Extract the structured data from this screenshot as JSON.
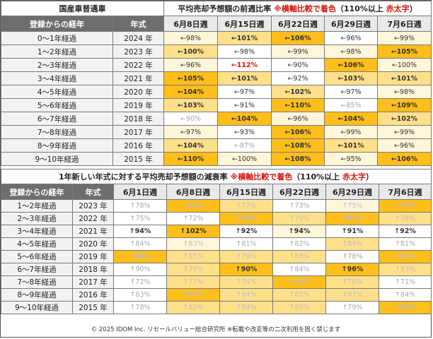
{
  "table1": {
    "category": "国産車普通車",
    "title_main": "平均売却予想額の前週比率",
    "title_note": "※横軸比較で着色",
    "title_paren_open": "（110%以上",
    "title_red": "赤太字",
    "title_paren_close": "）",
    "col_label1": "登録からの経年",
    "col_label2": "年式",
    "dates": [
      "6月8日週",
      "6月15日週",
      "6月22日週",
      "6月29日週",
      "7月6日週"
    ],
    "rows": [
      {
        "label": "0～1年経過",
        "year": "2024 年",
        "cells": [
          [
            "←98%",
            "l"
          ],
          [
            "←101%",
            "m"
          ],
          [
            "←106%",
            "h"
          ],
          [
            "←96%",
            "w"
          ],
          [
            "←99%",
            "l"
          ]
        ]
      },
      {
        "label": "1～2年経過",
        "year": "2023 年",
        "cells": [
          [
            "←100%",
            "m"
          ],
          [
            "←98%",
            "w"
          ],
          [
            "←99%",
            "l"
          ],
          [
            "←98%",
            "l"
          ],
          [
            "←105%",
            "h"
          ]
        ]
      },
      {
        "label": "2～3年経過",
        "year": "2022 年",
        "cells": [
          [
            "←96%",
            "l"
          ],
          [
            "←112%",
            "r"
          ],
          [
            "←90%",
            "w"
          ],
          [
            "←106%",
            "h"
          ],
          [
            "←100%",
            "l"
          ]
        ]
      },
      {
        "label": "3～4年経過",
        "year": "2021 年",
        "cells": [
          [
            "←105%",
            "h"
          ],
          [
            "←101%",
            "m"
          ],
          [
            "←92%",
            "w"
          ],
          [
            "←103%",
            "m"
          ],
          [
            "←101%",
            "m"
          ]
        ]
      },
      {
        "label": "4～5年経過",
        "year": "2020 年",
        "cells": [
          [
            "←104%",
            "h"
          ],
          [
            "←97%",
            "w"
          ],
          [
            "←102%",
            "m"
          ],
          [
            "←97%",
            "w"
          ],
          [
            "←98%",
            "l"
          ]
        ]
      },
      {
        "label": "5～6年経過",
        "year": "2019 年",
        "cells": [
          [
            "←103%",
            "m"
          ],
          [
            "←91%",
            "w"
          ],
          [
            "←110%",
            "h"
          ],
          [
            "←85%",
            "g"
          ],
          [
            "←109%",
            "h"
          ]
        ]
      },
      {
        "label": "6～7年経過",
        "year": "2018 年",
        "cells": [
          [
            "←90%",
            "g"
          ],
          [
            "←104%",
            "h"
          ],
          [
            "←96%",
            "l"
          ],
          [
            "←104%",
            "h"
          ],
          [
            "←102%",
            "m"
          ]
        ]
      },
      {
        "label": "7～8年経過",
        "year": "2017 年",
        "cells": [
          [
            "←97%",
            "l"
          ],
          [
            "←93%",
            "w"
          ],
          [
            "←106%",
            "h"
          ],
          [
            "←99%",
            "l"
          ],
          [
            "←99%",
            "l"
          ]
        ]
      },
      {
        "label": "8～9年経過",
        "year": "2016 年",
        "cells": [
          [
            "←104%",
            "m"
          ],
          [
            "←87%",
            "g"
          ],
          [
            "←108%",
            "h"
          ],
          [
            "←101%",
            "m"
          ],
          [
            "←96%",
            "l"
          ]
        ]
      },
      {
        "label": "9～10年経過",
        "year": "2015 年",
        "cells": [
          [
            "←110%",
            "h"
          ],
          [
            "←100%",
            "l"
          ],
          [
            "←108%",
            "h"
          ],
          [
            "←95%",
            "l"
          ],
          [
            "←106%",
            "h"
          ]
        ]
      }
    ]
  },
  "table2": {
    "title_main": "1年新しい年式に対する平均売却予想額の減衰率",
    "title_note": "※横軸比較で着色",
    "title_paren_open": "（110%以上",
    "title_red": "赤太字",
    "title_paren_close": "）",
    "col_label1": "登録からの経年",
    "col_label2": "年式",
    "dates": [
      "6月1日週",
      "6月8日週",
      "6月15日週",
      "6月22日週",
      "6月29日週",
      "7月6日週"
    ],
    "rows": [
      {
        "label": "1～2年経過",
        "year": "2023 年",
        "cells": [
          [
            "↑78%",
            "w"
          ],
          [
            "↑80%",
            "h"
          ],
          [
            "↑77%",
            "m"
          ],
          [
            "↑73%",
            "w"
          ],
          [
            "↑75%",
            "l"
          ],
          [
            "↑79%",
            "h"
          ]
        ]
      },
      {
        "label": "2～3年経過",
        "year": "2022 年",
        "cells": [
          [
            "↑75%",
            "w"
          ],
          [
            "↑72%",
            "w"
          ],
          [
            "↑83%",
            "h"
          ],
          [
            "↑75%",
            "m"
          ],
          [
            "↑81%",
            "h"
          ],
          [
            "↑78%",
            "m"
          ]
        ]
      },
      {
        "label": "3～4年経過",
        "year": "2021 年",
        "cells": [
          [
            "↑94%",
            "bw"
          ],
          [
            "↑102%",
            "bh"
          ],
          [
            "↑92%",
            "bw"
          ],
          [
            "↑94%",
            "bl"
          ],
          [
            "↑91%",
            "bw"
          ],
          [
            "↑92%",
            "bw"
          ]
        ]
      },
      {
        "label": "4～5年経過",
        "year": "2020 年",
        "cells": [
          [
            "↑84%",
            "w"
          ],
          [
            "↑83%",
            "l"
          ],
          [
            "↑81%",
            "w"
          ],
          [
            "↑82%",
            "w"
          ],
          [
            "↑84%",
            "m"
          ],
          [
            "↑81%",
            "w"
          ]
        ]
      },
      {
        "label": "5～6年経過",
        "year": "2019 年",
        "cells": [
          [
            "↑86%",
            "h"
          ],
          [
            "↑85%",
            "m"
          ],
          [
            "↑79%",
            "m"
          ],
          [
            "↑85%",
            "m"
          ],
          [
            "↑78%",
            "w"
          ],
          [
            "↑84%",
            "h"
          ]
        ]
      },
      {
        "label": "6～7年経過",
        "year": "2018 年",
        "cells": [
          [
            "↑90%",
            "w"
          ],
          [
            "↑79%",
            "m"
          ],
          [
            "↑90%",
            "bh"
          ],
          [
            "↑84%",
            "w"
          ],
          [
            "↑96%",
            "bh"
          ],
          [
            "↑93%",
            "m"
          ]
        ]
      },
      {
        "label": "7～8年経過",
        "year": "2017 年",
        "cells": [
          [
            "↑72%",
            "w"
          ],
          [
            "↑77%",
            "m"
          ],
          [
            "↑74%",
            "m"
          ],
          [
            "↑83%",
            "h"
          ],
          [
            "↑76%",
            "m"
          ],
          [
            "↑71%",
            "w"
          ]
        ]
      },
      {
        "label": "8～9年経過",
        "year": "2016 年",
        "cells": [
          [
            "↑83%",
            "w"
          ],
          [
            "↑89%",
            "h"
          ],
          [
            "↑84%",
            "m"
          ],
          [
            "↑85%",
            "m"
          ],
          [
            "↑87%",
            "m"
          ],
          [
            "↑84%",
            "w"
          ]
        ]
      },
      {
        "label": "9～10年経過",
        "year": "2015 年",
        "cells": [
          [
            "↑78%",
            "w"
          ],
          [
            "↑82%",
            "m"
          ],
          [
            "↑84%",
            "m"
          ],
          [
            "↑85%",
            "m"
          ],
          [
            "↑79%",
            "w"
          ],
          [
            "↑88%",
            "h"
          ]
        ]
      }
    ]
  },
  "footer": "© 2025 IDOM Inc. リセールバリュー総合研究所 ※転載や改変等の二次利用を固く禁じます",
  "colors": {
    "w": "#ffffff",
    "l": "#fff5d9",
    "m": "#ffe08a",
    "h": "#ffbe1a",
    "r": "#ffe9a8",
    "header_dark": "#6e6e6e",
    "red_text": "#e0160c"
  }
}
